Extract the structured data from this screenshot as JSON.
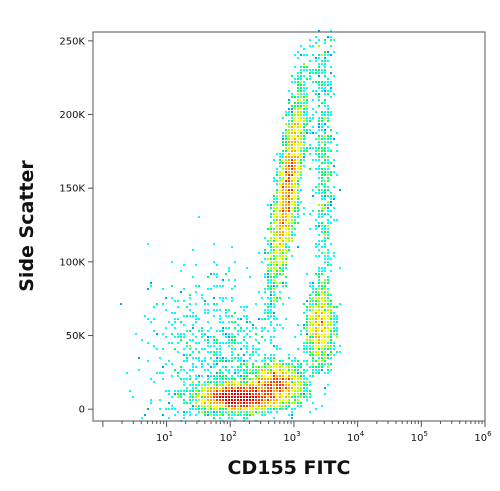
{
  "chart_data": {
    "type": "scatter",
    "subtype": "flow-cytometry-density-dot-plot",
    "xlabel": "CD155 FITC",
    "ylabel": "Side Scatter",
    "x_scale": "log",
    "x_range": [
      0.7,
      1000000
    ],
    "y_range": [
      -8000,
      256000
    ],
    "x_ticks": [
      {
        "value": 10,
        "base": "10",
        "exp": "1"
      },
      {
        "value": 100,
        "base": "10",
        "exp": "2"
      },
      {
        "value": 1000,
        "base": "10",
        "exp": "3"
      },
      {
        "value": 10000,
        "base": "10",
        "exp": "4"
      },
      {
        "value": 100000,
        "base": "10",
        "exp": "5"
      },
      {
        "value": 1000000,
        "base": "10",
        "exp": "6"
      }
    ],
    "y_ticks": [
      {
        "value": 0,
        "label": "0"
      },
      {
        "value": 50000,
        "label": "50K"
      },
      {
        "value": 100000,
        "label": "100K"
      },
      {
        "value": 150000,
        "label": "150K"
      },
      {
        "value": 200000,
        "label": "200K"
      },
      {
        "value": 250000,
        "label": "250K"
      }
    ],
    "grid": false,
    "legend": "none",
    "color_map": [
      "#0000ff",
      "#00a0ff",
      "#00ffff",
      "#00ff66",
      "#aaff00",
      "#ffff00",
      "#ffaa00",
      "#ff3300",
      "#dd0000"
    ],
    "populations": [
      {
        "x_center": 130,
        "x_log_sd": 0.28,
        "y_center": 8000,
        "y_sd": 4500,
        "weight": 0.32
      },
      {
        "x_center": 550,
        "x_log_sd": 0.2,
        "y_center": 16000,
        "y_sd": 7000,
        "weight": 0.16
      },
      {
        "x_center": 820,
        "x_log_sd": 0.085,
        "y_center": 150000,
        "y_sd": 32000,
        "weight": 0.3,
        "x_log_slope_per_100k": 0.32
      },
      {
        "x_center": 2600,
        "x_log_sd": 0.1,
        "y_center": 55000,
        "y_sd": 13000,
        "weight": 0.1
      },
      {
        "x_center": 3000,
        "x_log_sd": 0.08,
        "y_center": 170000,
        "y_sd": 55000,
        "weight": 0.05
      },
      {
        "x_center": 60,
        "x_log_sd": 0.5,
        "y_center": 30000,
        "y_sd": 30000,
        "weight": 0.07
      }
    ]
  }
}
